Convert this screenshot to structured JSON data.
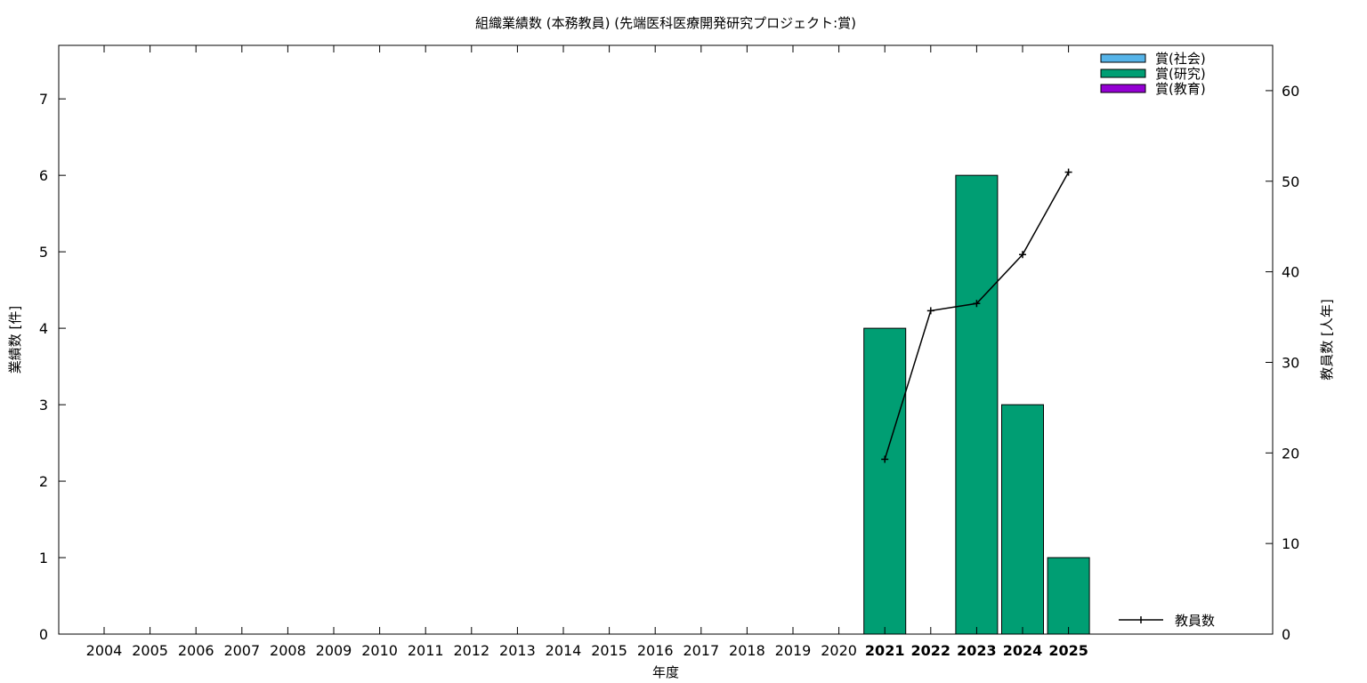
{
  "chart_data": {
    "type": "bar",
    "title": "組織業績数 (本務教員) (先端医科医療開発研究プロジェクト:賞)",
    "xlabel": "年度",
    "ylabel": "業績数 [件]",
    "y2label": "教員数 [人年]",
    "categories": [
      "2004",
      "2005",
      "2006",
      "2007",
      "2008",
      "2009",
      "2010",
      "2011",
      "2012",
      "2013",
      "2014",
      "2015",
      "2016",
      "2017",
      "2018",
      "2019",
      "2020",
      "2021",
      "2022",
      "2023",
      "2024",
      "2025"
    ],
    "bold_categories": [
      "2021",
      "2022",
      "2023",
      "2024",
      "2025"
    ],
    "ylim": [
      0,
      7.7
    ],
    "y_ticks": [
      0,
      1,
      2,
      3,
      4,
      5,
      6,
      7
    ],
    "y2lim": [
      0,
      65
    ],
    "y2_ticks": [
      0,
      10,
      20,
      30,
      40,
      50,
      60
    ],
    "grid": false,
    "legend_position": "top-right",
    "series": [
      {
        "name": "賞(社会)",
        "type": "bar",
        "color": "#56b4e9",
        "values": [
          0,
          0,
          0,
          0,
          0,
          0,
          0,
          0,
          0,
          0,
          0,
          0,
          0,
          0,
          0,
          0,
          0,
          0,
          0,
          0,
          0,
          0
        ]
      },
      {
        "name": "賞(研究)",
        "type": "bar",
        "color": "#009e73",
        "values": [
          0,
          0,
          0,
          0,
          0,
          0,
          0,
          0,
          0,
          0,
          0,
          0,
          0,
          0,
          0,
          0,
          0,
          4,
          0,
          6,
          3,
          1
        ]
      },
      {
        "name": "賞(教育)",
        "type": "bar",
        "color": "#9400d3",
        "values": [
          0,
          0,
          0,
          0,
          0,
          0,
          0,
          0,
          0,
          0,
          0,
          0,
          0,
          0,
          0,
          0,
          0,
          0,
          0,
          0,
          0,
          0
        ]
      },
      {
        "name": "教員数",
        "type": "line",
        "axis": "y2",
        "color": "#000000",
        "points": [
          {
            "x": "2021",
            "y": 19.3
          },
          {
            "x": "2022",
            "y": 35.7
          },
          {
            "x": "2023",
            "y": 36.5
          },
          {
            "x": "2024",
            "y": 41.9
          },
          {
            "x": "2025",
            "y": 51.0
          }
        ]
      }
    ]
  }
}
